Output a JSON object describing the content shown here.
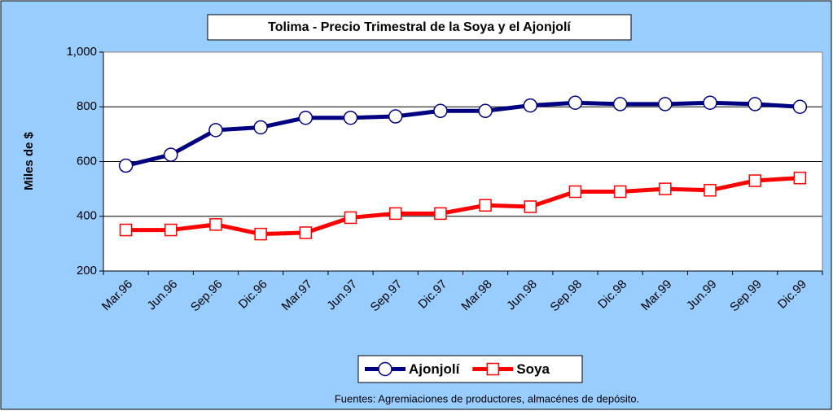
{
  "chart_data": {
    "type": "line",
    "title": "Tolima - Precio Trimestral de la Soya y el Ajonjolí",
    "y_label": "Miles de $",
    "footnote": "Fuentes: Agremiaciones de productores, almacénes de depósito.",
    "categories": [
      "Mar.96",
      "Jun.96",
      "Sep.96",
      "Dic.96",
      "Mar.97",
      "Jun.97",
      "Sep.97",
      "Dic.97",
      "Mar.98",
      "Jun.98",
      "Sep.98",
      "Dic.98",
      "Mar.99",
      "Jun.99",
      "Sep.99",
      "Dic.99"
    ],
    "series": [
      {
        "name": "Ajonjolí",
        "color": "#000080",
        "marker": "circle",
        "values": [
          585,
          625,
          715,
          725,
          760,
          760,
          765,
          785,
          785,
          805,
          815,
          810,
          810,
          815,
          810,
          800
        ]
      },
      {
        "name": "Soya",
        "color": "#ff0000",
        "marker": "square",
        "values": [
          350,
          350,
          370,
          335,
          340,
          395,
          410,
          410,
          440,
          435,
          490,
          490,
          500,
          495,
          530,
          540
        ]
      }
    ],
    "ylim": [
      200,
      1000
    ],
    "yticks": [
      200,
      400,
      600,
      800,
      {
        "value": 1000,
        "label": "1,000"
      }
    ],
    "grid": true,
    "legend": "bottom"
  }
}
